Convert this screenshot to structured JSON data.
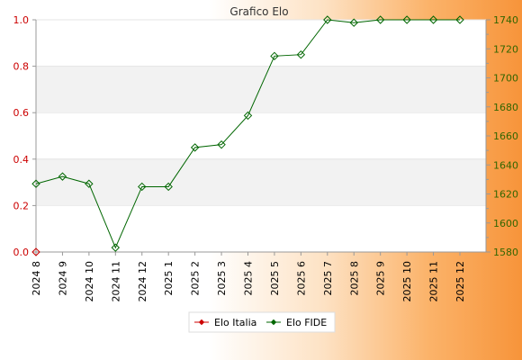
{
  "chart_data": {
    "type": "line",
    "title": "Grafico Elo",
    "categories": [
      "2024 8",
      "2024 9",
      "2024 10",
      "2024 11",
      "2024 12",
      "2025 1",
      "2025 2",
      "2025 3",
      "2025 4",
      "2025 5",
      "2025 6",
      "2025 7",
      "2025 8",
      "2025 9",
      "2025 10",
      "2025 11",
      "2025 12"
    ],
    "y_left": {
      "range": [
        0,
        1.0
      ],
      "ticks": [
        "0.0",
        "0.2",
        "0.4",
        "0.6",
        "0.8",
        "1.0"
      ]
    },
    "y_right": {
      "range": [
        1580,
        1740
      ],
      "ticks": [
        "1580",
        "1600",
        "1620",
        "1640",
        "1660",
        "1680",
        "1700",
        "1720",
        "1740"
      ]
    },
    "series": [
      {
        "name": "Elo Italia",
        "axis": "left",
        "values": [
          0,
          null,
          null,
          null,
          null,
          null,
          null,
          null,
          null,
          null,
          null,
          null,
          null,
          null,
          null,
          null,
          null
        ]
      },
      {
        "name": "Elo FIDE",
        "axis": "right",
        "values": [
          1627,
          1632,
          1627,
          1583,
          1625,
          1625,
          1652,
          1654,
          1674,
          1715,
          1716,
          1740,
          1738,
          1740,
          1740,
          1740,
          1740
        ]
      }
    ],
    "grid": "horizontal bands",
    "legend_position": "bottom-center",
    "colors": {
      "elo_italia": "#cc0000",
      "elo_fide": "#006600",
      "band": "#f2f2f2",
      "left_axis_text": "#cc0000",
      "right_axis_text": "#336600"
    }
  }
}
